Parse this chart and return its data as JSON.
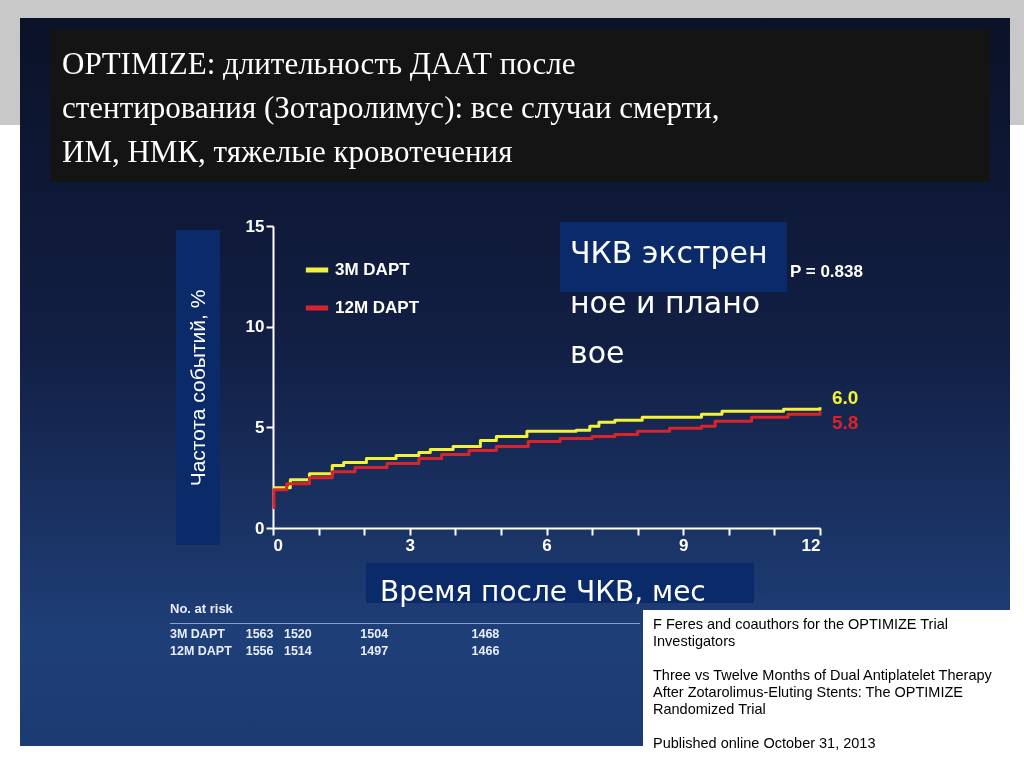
{
  "chart_data": {
    "type": "step",
    "title": "OPTIMIZE: длительность ДААТ после стентирования (Зотаролимус): все случаи смерти, ИМ, НМК, тяжелые кровотечения",
    "xlabel": "Время после ЧКВ, мес",
    "ylabel": "Частота событий, %",
    "xlim": [
      0,
      12
    ],
    "xticks": [
      0,
      {
        "value": 1,
        "label": null
      },
      {
        "value": 2,
        "label": null
      },
      3,
      {
        "value": 4,
        "label": null
      },
      {
        "value": 5,
        "label": null
      },
      6,
      {
        "value": 7,
        "label": null
      },
      {
        "value": 8,
        "label": null
      },
      9,
      {
        "value": 10,
        "label": null
      },
      {
        "value": 11,
        "label": null
      },
      12
    ],
    "ylim": [
      0,
      15
    ],
    "yticks": [
      0,
      5,
      10,
      15
    ],
    "grid": false,
    "legend": "top left",
    "series": [
      {
        "name": "3M DAPT",
        "color": "#f2f23a",
        "x": [
          0,
          0.38,
          0.8,
          1.3,
          1.55,
          2.05,
          2.7,
          3.2,
          3.45,
          3.95,
          4.55,
          4.9,
          5.57,
          6.65,
          6.95,
          7.15,
          7.5,
          8.1,
          9.4,
          9.85,
          11.2,
          12
        ],
        "values": [
          2.0,
          2.4,
          2.7,
          3.1,
          3.25,
          3.45,
          3.6,
          3.75,
          3.9,
          4.05,
          4.35,
          4.55,
          4.8,
          4.85,
          5.05,
          5.25,
          5.35,
          5.5,
          5.65,
          5.8,
          5.9,
          6.0
        ]
      },
      {
        "name": "12M DAPT",
        "color": "#d8242a",
        "x": [
          0,
          0.02,
          0.3,
          0.8,
          1.3,
          1.8,
          2.5,
          3.2,
          3.7,
          4.3,
          4.9,
          5.6,
          6.3,
          7.0,
          7.5,
          8.0,
          8.7,
          9.4,
          9.7,
          10.5,
          11.3,
          12
        ],
        "values": [
          1.0,
          1.9,
          2.2,
          2.5,
          2.8,
          3.0,
          3.2,
          3.45,
          3.65,
          3.85,
          4.05,
          4.3,
          4.45,
          4.55,
          4.65,
          4.8,
          4.95,
          5.05,
          5.3,
          5.5,
          5.65,
          5.8
        ]
      }
    ],
    "annotations": [
      {
        "text": "6.0",
        "x": 12,
        "y": 6.0
      },
      {
        "text": "5.8",
        "x": 12,
        "y": 5.8
      },
      "P = 0.838",
      "ЧКВ экстренное и плановое",
      "No. at risk",
      "3M DAPT      1563   1520              1504                        1468",
      "12M DAPT    1556   1514              1497                        1466",
      "F Feres and coauthors for the OPTIMIZE Trial Investigators",
      "Three vs Twelve Months of Dual Antiplatelet Therapy After Zotarolimus-Eluting Stents: The OPTIMIZE  Randomized Trial",
      "Published online October 31, 2013"
    ]
  }
}
